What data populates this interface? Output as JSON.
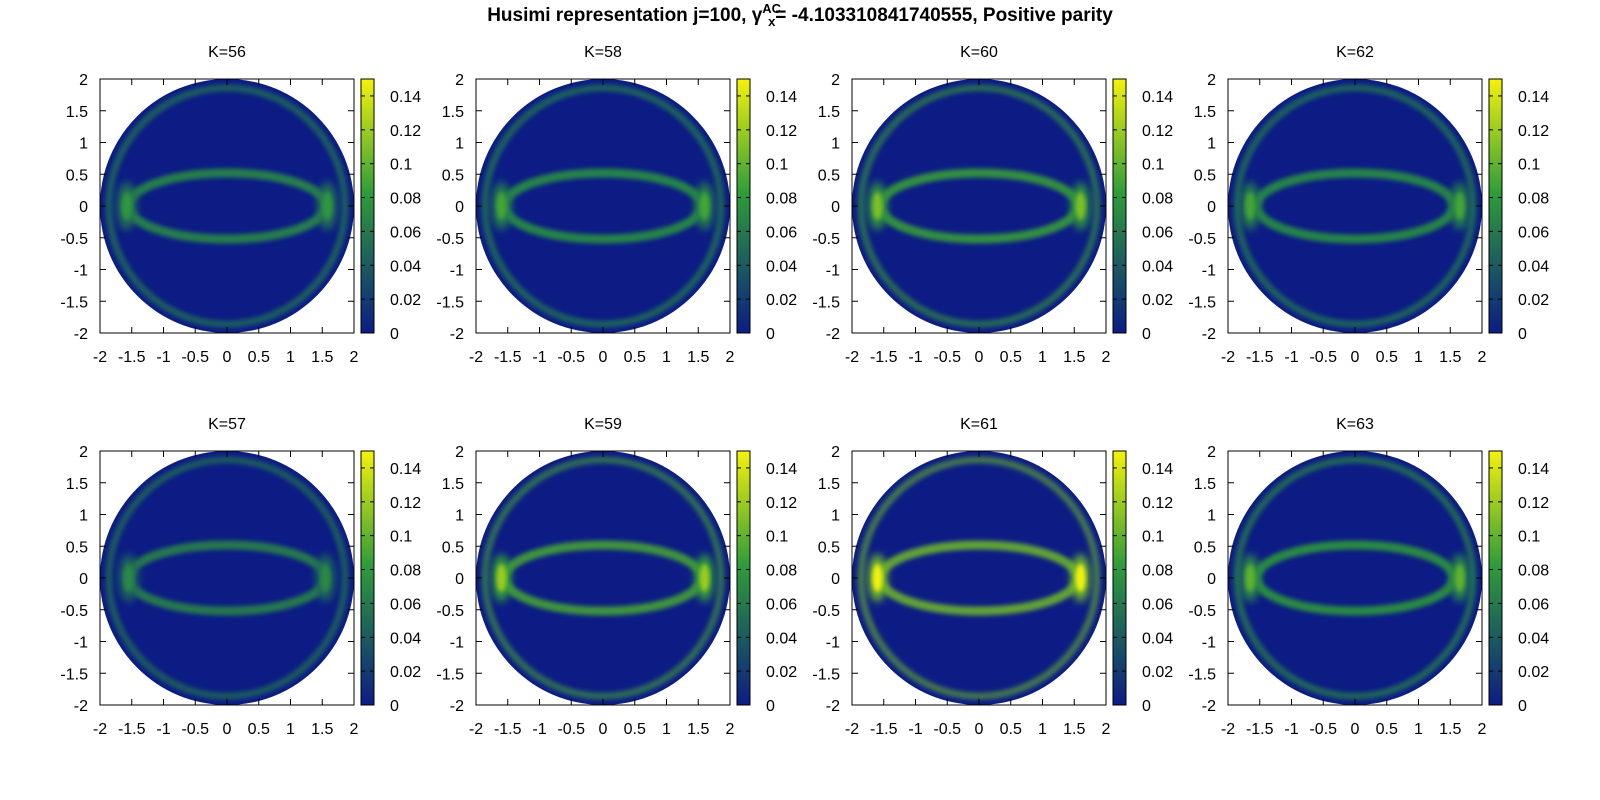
{
  "title": {
    "prefix": "Husimi representation j=100, γ",
    "sup": "AC",
    "sub": "x",
    "suffix": "= -4.103310841740555, Positive parity"
  },
  "colors": {
    "low": "#0c1c84",
    "mid": "#2e9c3a",
    "high": "#f4f20a"
  },
  "chart_data": [
    {
      "type": "heatmap",
      "title": "K=56",
      "xlim": [
        -2,
        2
      ],
      "ylim": [
        -2,
        2
      ],
      "xticks": [
        "-2",
        "-1.5",
        "-1",
        "-0.5",
        "0",
        "0.5",
        "1",
        "1.5",
        "2"
      ],
      "yticks": [
        "2",
        "1.5",
        "1",
        "0.5",
        "0",
        "-0.5",
        "-1",
        "-1.5",
        "-2"
      ],
      "colorbar": {
        "range": [
          0,
          0.15
        ],
        "ticks": [
          "0.14",
          "0.12",
          "0.1",
          "0.08",
          "0.06",
          "0.04",
          "0.02",
          "0"
        ]
      },
      "peak_intensity": 0.08,
      "hotspot_x": 1.58
    },
    {
      "type": "heatmap",
      "title": "K=58",
      "xlim": [
        -2,
        2
      ],
      "ylim": [
        -2,
        2
      ],
      "xticks": [
        "-2",
        "-1.5",
        "-1",
        "-0.5",
        "0",
        "0.5",
        "1",
        "1.5",
        "2"
      ],
      "yticks": [
        "2",
        "1.5",
        "1",
        "0.5",
        "0",
        "-0.5",
        "-1",
        "-1.5",
        "-2"
      ],
      "colorbar": {
        "range": [
          0,
          0.15
        ],
        "ticks": [
          "0.14",
          "0.12",
          "0.1",
          "0.08",
          "0.06",
          "0.04",
          "0.02",
          "0"
        ]
      },
      "peak_intensity": 0.09,
      "hotspot_x": 1.6
    },
    {
      "type": "heatmap",
      "title": "K=60",
      "xlim": [
        -2,
        2
      ],
      "ylim": [
        -2,
        2
      ],
      "xticks": [
        "-2",
        "-1.5",
        "-1",
        "-0.5",
        "0",
        "0.5",
        "1",
        "1.5",
        "2"
      ],
      "yticks": [
        "2",
        "1.5",
        "1",
        "0.5",
        "0",
        "-0.5",
        "-1",
        "-1.5",
        "-2"
      ],
      "colorbar": {
        "range": [
          0,
          0.15
        ],
        "ticks": [
          "0.14",
          "0.12",
          "0.1",
          "0.08",
          "0.06",
          "0.04",
          "0.02",
          "0"
        ]
      },
      "peak_intensity": 0.11,
      "hotspot_x": 1.6
    },
    {
      "type": "heatmap",
      "title": "K=62",
      "xlim": [
        -2,
        2
      ],
      "ylim": [
        -2,
        2
      ],
      "xticks": [
        "-2",
        "-1.5",
        "-1",
        "-0.5",
        "0",
        "0.5",
        "1",
        "1.5",
        "2"
      ],
      "yticks": [
        "2",
        "1.5",
        "1",
        "0.5",
        "0",
        "-0.5",
        "-1",
        "-1.5",
        "-2"
      ],
      "colorbar": {
        "range": [
          0,
          0.15
        ],
        "ticks": [
          "0.14",
          "0.12",
          "0.1",
          "0.08",
          "0.06",
          "0.04",
          "0.02",
          "0"
        ]
      },
      "peak_intensity": 0.09,
      "hotspot_x": 1.65
    },
    {
      "type": "heatmap",
      "title": "K=57",
      "xlim": [
        -2,
        2
      ],
      "ylim": [
        -2,
        2
      ],
      "xticks": [
        "-2",
        "-1.5",
        "-1",
        "-0.5",
        "0",
        "0.5",
        "1",
        "1.5",
        "2"
      ],
      "yticks": [
        "2",
        "1.5",
        "1",
        "0.5",
        "0",
        "-0.5",
        "-1",
        "-1.5",
        "-2"
      ],
      "colorbar": {
        "range": [
          0,
          0.15
        ],
        "ticks": [
          "0.14",
          "0.12",
          "0.1",
          "0.08",
          "0.06",
          "0.04",
          "0.02",
          "0"
        ]
      },
      "peak_intensity": 0.07,
      "hotspot_x": 1.55
    },
    {
      "type": "heatmap",
      "title": "K=59",
      "xlim": [
        -2,
        2
      ],
      "ylim": [
        -2,
        2
      ],
      "xticks": [
        "-2",
        "-1.5",
        "-1",
        "-0.5",
        "0",
        "0.5",
        "1",
        "1.5",
        "2"
      ],
      "yticks": [
        "2",
        "1.5",
        "1",
        "0.5",
        "0",
        "-0.5",
        "-1",
        "-1.5",
        "-2"
      ],
      "colorbar": {
        "range": [
          0,
          0.15
        ],
        "ticks": [
          "0.14",
          "0.12",
          "0.1",
          "0.08",
          "0.06",
          "0.04",
          "0.02",
          "0"
        ]
      },
      "peak_intensity": 0.12,
      "hotspot_x": 1.6
    },
    {
      "type": "heatmap",
      "title": "K=61",
      "xlim": [
        -2,
        2
      ],
      "ylim": [
        -2,
        2
      ],
      "xticks": [
        "-2",
        "-1.5",
        "-1",
        "-0.5",
        "0",
        "0.5",
        "1",
        "1.5",
        "2"
      ],
      "yticks": [
        "2",
        "1.5",
        "1",
        "0.5",
        "0",
        "-0.5",
        "-1",
        "-1.5",
        "-2"
      ],
      "colorbar": {
        "range": [
          0,
          0.15
        ],
        "ticks": [
          "0.14",
          "0.12",
          "0.1",
          "0.08",
          "0.06",
          "0.04",
          "0.02",
          "0"
        ]
      },
      "peak_intensity": 0.15,
      "hotspot_x": 1.6
    },
    {
      "type": "heatmap",
      "title": "K=63",
      "xlim": [
        -2,
        2
      ],
      "ylim": [
        -2,
        2
      ],
      "xticks": [
        "-2",
        "-1.5",
        "-1",
        "-0.5",
        "0",
        "0.5",
        "1",
        "1.5",
        "2"
      ],
      "yticks": [
        "2",
        "1.5",
        "1",
        "0.5",
        "0",
        "-0.5",
        "-1",
        "-1.5",
        "-2"
      ],
      "colorbar": {
        "range": [
          0,
          0.15
        ],
        "ticks": [
          "0.14",
          "0.12",
          "0.1",
          "0.08",
          "0.06",
          "0.04",
          "0.02",
          "0"
        ]
      },
      "peak_intensity": 0.1,
      "hotspot_x": 1.65
    }
  ]
}
